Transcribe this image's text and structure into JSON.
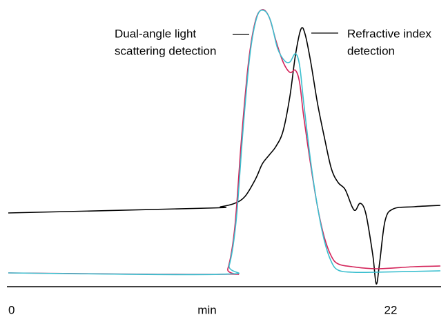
{
  "chart_data": {
    "type": "line",
    "xlabel": "min",
    "xlim": [
      0,
      24.86
    ],
    "xticks": [
      0,
      22
    ],
    "ylim": [
      0,
      406
    ],
    "annotations": [
      {
        "lines": [
          "Dual-angle light",
          "scattering detection"
        ]
      },
      {
        "lines": [
          "Refractive index",
          "detection"
        ]
      }
    ],
    "series": [
      {
        "color": "#000000",
        "x": [
          0,
          11.44,
          12.23,
          13.03,
          13.62,
          14.22,
          14.61,
          15.01,
          15.41,
          15.81,
          16.2,
          16.52,
          16.84,
          17.08,
          17.4,
          17.79,
          18.19,
          18.59,
          18.98,
          19.38,
          19.78,
          19.98,
          20.25,
          20.57,
          20.97,
          21.17,
          21.37,
          21.68,
          22.16,
          23.35,
          24.86
        ],
        "values": [
          107,
          114,
          116,
          121,
          131,
          156,
          178,
          191,
          204,
          226,
          276,
          336,
          374,
          366,
          326,
          266,
          216,
          171,
          151,
          141,
          116,
          111,
          121,
          106,
          46,
          4,
          36,
          96,
          113,
          116,
          118
        ]
      },
      {
        "color": "#d4245a",
        "x": [
          0,
          12.23,
          12.63,
          13.03,
          13.42,
          13.82,
          14.22,
          14.61,
          15.01,
          15.41,
          15.81,
          16.2,
          16.52,
          16.76,
          17.0,
          17.4,
          17.79,
          18.19,
          18.59,
          18.98,
          19.78,
          21.17,
          23.35,
          24.86
        ],
        "values": [
          20,
          18,
          26,
          86,
          216,
          326,
          386,
          402,
          391,
          356,
          326,
          311,
          314,
          296,
          246,
          176,
          116,
          71,
          44,
          33,
          29,
          26,
          29,
          30
        ]
      },
      {
        "color": "#3bbfcf",
        "x": [
          0,
          12.23,
          12.71,
          13.11,
          13.5,
          13.9,
          14.3,
          14.69,
          15.09,
          15.49,
          15.89,
          16.2,
          16.52,
          16.76,
          17.0,
          17.4,
          17.79,
          18.19,
          18.59,
          18.98,
          19.78,
          21.17,
          24.86
        ],
        "values": [
          20,
          18,
          31,
          96,
          226,
          336,
          391,
          401,
          386,
          346,
          328,
          326,
          338,
          321,
          266,
          181,
          116,
          66,
          36,
          24,
          21,
          21,
          23
        ]
      }
    ]
  }
}
